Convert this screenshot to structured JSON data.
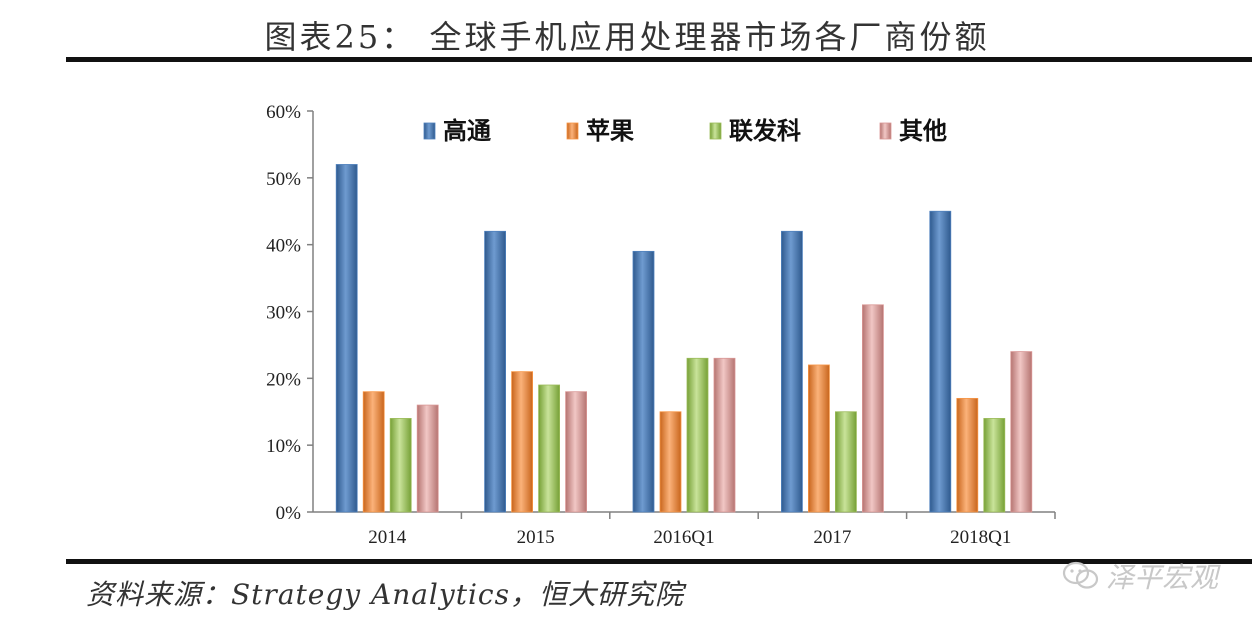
{
  "header": {
    "title": "图表25： 全球手机应用处理器市场各厂商份额"
  },
  "footer": {
    "source": "资料来源：Strategy Analytics，恒大研究院",
    "watermark": "泽平宏观"
  },
  "chart_data": {
    "type": "bar",
    "categories": [
      "2014",
      "2015",
      "2016Q1",
      "2017",
      "2018Q1"
    ],
    "series": [
      {
        "name": "高通",
        "values": [
          52,
          42,
          39,
          42,
          45
        ],
        "color": "#4f81bd"
      },
      {
        "name": "苹果",
        "values": [
          18,
          21,
          15,
          22,
          17
        ],
        "color": "#f79646"
      },
      {
        "name": "联发科",
        "values": [
          14,
          19,
          23,
          15,
          14
        ],
        "color": "#9bbb59"
      },
      {
        "name": "其他",
        "values": [
          16,
          18,
          23,
          31,
          24
        ],
        "color": "#d99694"
      }
    ],
    "yticks": [
      "0%",
      "10%",
      "20%",
      "30%",
      "40%",
      "50%",
      "60%"
    ],
    "ylim": [
      0,
      60
    ],
    "grid": false,
    "legend": "top"
  }
}
